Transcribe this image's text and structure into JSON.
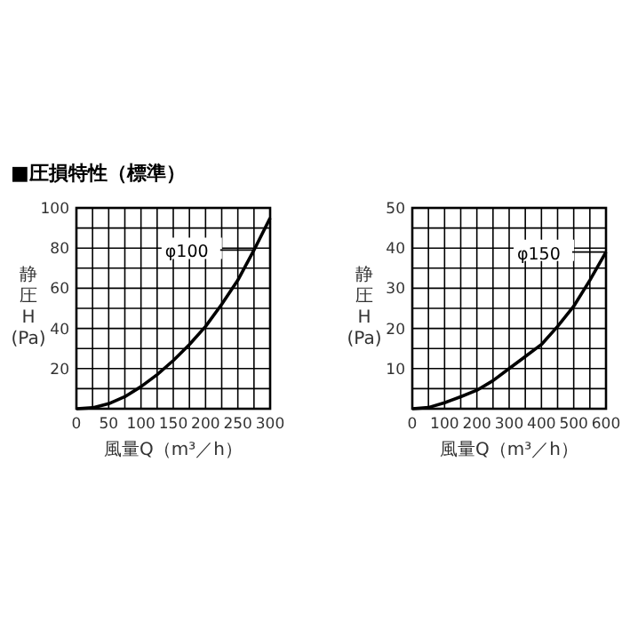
{
  "chart_data": [
    {
      "type": "line",
      "title": "■圧損特性（標準）",
      "xlabel": "風量Q（m³／h）",
      "ylabel": "静圧 H (Pa)",
      "x": [
        0,
        25,
        50,
        75,
        100,
        125,
        150,
        175,
        200,
        225,
        250,
        275,
        300
      ],
      "series": [
        {
          "name": "φ100",
          "color": "#000000",
          "values": [
            0,
            0.5,
            2.5,
            6,
            11,
            17,
            24,
            32,
            41,
            52,
            64,
            79,
            95
          ]
        }
      ],
      "xlim": [
        0,
        300
      ],
      "ylim": [
        0,
        100
      ],
      "xticks": [
        0,
        {
          "value": 25,
          "label": null
        },
        50,
        {
          "value": 75,
          "label": null
        },
        100,
        {
          "value": 125,
          "label": null
        },
        150,
        {
          "value": 175,
          "label": null
        },
        200,
        {
          "value": 225,
          "label": null
        },
        250,
        {
          "value": 275,
          "label": null
        },
        300
      ],
      "yticks": [
        {
          "value": 0,
          "label": null
        },
        {
          "value": 10,
          "label": null
        },
        20,
        {
          "value": 30,
          "label": null
        },
        40,
        {
          "value": 50,
          "label": null
        },
        60,
        {
          "value": 70,
          "label": null
        },
        80,
        {
          "value": 90,
          "label": null
        },
        100
      ],
      "grid": true,
      "marker": "none",
      "line_style": "solid"
    },
    {
      "type": "line",
      "xlabel": "風量Q（m³／h）",
      "ylabel": "静圧 H (Pa)",
      "x": [
        0,
        50,
        100,
        150,
        200,
        250,
        300,
        350,
        400,
        450,
        500,
        550,
        600
      ],
      "series": [
        {
          "name": "φ150",
          "color": "#000000",
          "values": [
            0,
            0.3,
            1.5,
            3,
            4.6,
            7,
            10,
            13,
            16,
            20.5,
            25.5,
            32,
            39
          ]
        }
      ],
      "xlim": [
        0,
        600
      ],
      "ylim": [
        0,
        50
      ],
      "xticks": [
        0,
        {
          "value": 50,
          "label": null
        },
        100,
        {
          "value": 150,
          "label": null
        },
        200,
        {
          "value": 250,
          "label": null
        },
        300,
        {
          "value": 350,
          "label": null
        },
        400,
        {
          "value": 450,
          "label": null
        },
        500,
        {
          "value": 550,
          "label": null
        },
        600
      ],
      "yticks": [
        {
          "value": 0,
          "label": null
        },
        {
          "value": 5,
          "label": null
        },
        10,
        {
          "value": 15,
          "label": null
        },
        20,
        {
          "value": 25,
          "label": null
        },
        30,
        {
          "value": 35,
          "label": null
        },
        40,
        {
          "value": 45,
          "label": null
        },
        50
      ],
      "grid": true,
      "marker": "none",
      "line_style": "solid"
    }
  ]
}
